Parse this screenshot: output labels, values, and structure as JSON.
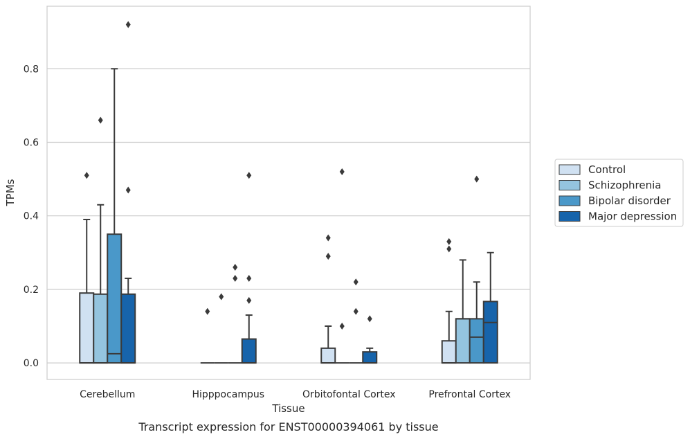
{
  "chart_data": {
    "type": "box",
    "xlabel": "Tissue",
    "ylabel": "TPMs",
    "caption": "Transcript expression for ENST00000394061 by tissue",
    "ylim": [
      -0.045,
      0.97
    ],
    "yticks": [
      0.0,
      0.2,
      0.4,
      0.6,
      0.8
    ],
    "ytick_labels": [
      "0.0",
      "0.2",
      "0.4",
      "0.6",
      "0.8"
    ],
    "grid": "horizontal",
    "legend_position": "right",
    "categories": [
      "Cerebellum",
      "Hipppocampus",
      "Orbitofontal Cortex",
      "Prefrontal Cortex"
    ],
    "series": [
      {
        "name": "Control",
        "color": "#d0e1f2",
        "boxes": [
          {
            "q1": 0.0,
            "median": 0.0,
            "q3": 0.19,
            "whisker_low": 0.0,
            "whisker_high": 0.39,
            "outliers": [
              0.51
            ]
          },
          {
            "q1": 0.0,
            "median": 0.0,
            "q3": 0.0,
            "whisker_low": 0.0,
            "whisker_high": 0.0,
            "outliers": [
              0.14
            ]
          },
          {
            "q1": 0.0,
            "median": 0.0,
            "q3": 0.04,
            "whisker_low": 0.0,
            "whisker_high": 0.1,
            "outliers": [
              0.29,
              0.34
            ]
          },
          {
            "q1": 0.0,
            "median": 0.0,
            "q3": 0.06,
            "whisker_low": 0.0,
            "whisker_high": 0.14,
            "outliers": [
              0.31,
              0.33
            ]
          }
        ]
      },
      {
        "name": "Schizophrenia",
        "color": "#94c4df",
        "boxes": [
          {
            "q1": 0.0,
            "median": 0.0,
            "q3": 0.187,
            "whisker_low": 0.0,
            "whisker_high": 0.43,
            "outliers": [
              0.66
            ]
          },
          {
            "q1": 0.0,
            "median": 0.0,
            "q3": 0.0,
            "whisker_low": 0.0,
            "whisker_high": 0.0,
            "outliers": [
              0.18
            ]
          },
          {
            "q1": 0.0,
            "median": 0.0,
            "q3": 0.0,
            "whisker_low": 0.0,
            "whisker_high": 0.0,
            "outliers": [
              0.52,
              0.1
            ]
          },
          {
            "q1": 0.0,
            "median": 0.12,
            "q3": 0.12,
            "whisker_low": 0.0,
            "whisker_high": 0.28,
            "outliers": []
          }
        ]
      },
      {
        "name": "Bipolar disorder",
        "color": "#4a98c9",
        "boxes": [
          {
            "q1": 0.0,
            "median": 0.025,
            "q3": 0.35,
            "whisker_low": 0.0,
            "whisker_high": 0.8,
            "outliers": []
          },
          {
            "q1": 0.0,
            "median": 0.0,
            "q3": 0.0,
            "whisker_low": 0.0,
            "whisker_high": 0.0,
            "outliers": [
              0.26,
              0.23
            ]
          },
          {
            "q1": 0.0,
            "median": 0.0,
            "q3": 0.0,
            "whisker_low": 0.0,
            "whisker_high": 0.0,
            "outliers": [
              0.22,
              0.14
            ]
          },
          {
            "q1": 0.0,
            "median": 0.07,
            "q3": 0.12,
            "whisker_low": 0.0,
            "whisker_high": 0.22,
            "outliers": [
              0.5
            ]
          }
        ]
      },
      {
        "name": "Major depression",
        "color": "#1764ab",
        "boxes": [
          {
            "q1": 0.0,
            "median": 0.0,
            "q3": 0.187,
            "whisker_low": 0.0,
            "whisker_high": 0.23,
            "outliers": [
              0.92,
              0.47
            ]
          },
          {
            "q1": 0.0,
            "median": 0.0,
            "q3": 0.065,
            "whisker_low": 0.0,
            "whisker_high": 0.13,
            "outliers": [
              0.51,
              0.23,
              0.17
            ]
          },
          {
            "q1": 0.0,
            "median": 0.0,
            "q3": 0.03,
            "whisker_low": 0.0,
            "whisker_high": 0.04,
            "outliers": [
              0.12
            ]
          },
          {
            "q1": 0.0,
            "median": 0.11,
            "q3": 0.167,
            "whisker_low": 0.0,
            "whisker_high": 0.3,
            "outliers": []
          }
        ]
      }
    ]
  }
}
